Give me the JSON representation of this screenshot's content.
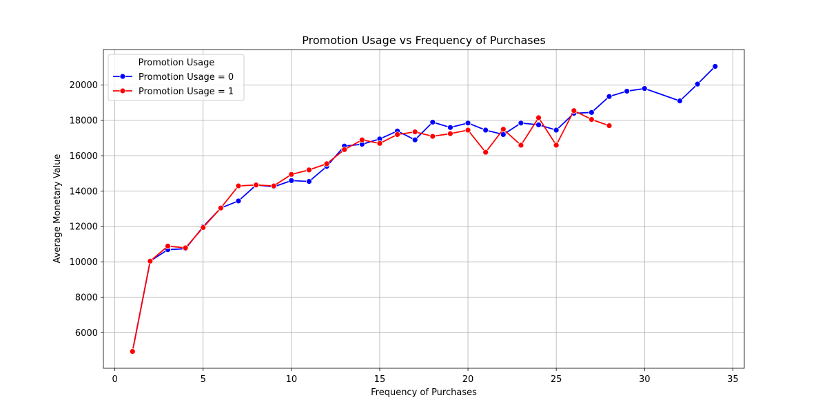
{
  "chart_data": {
    "type": "line",
    "title": "Promotion Usage vs Frequency of Purchases",
    "xlabel": "Frequency of Purchases",
    "ylabel": "Average Monetary Value",
    "xlim": [
      -0.65,
      35.65
    ],
    "ylim": [
      4000,
      22000
    ],
    "xticks": [
      0,
      5,
      10,
      15,
      20,
      25,
      30,
      35
    ],
    "yticks": [
      6000,
      8000,
      10000,
      12000,
      14000,
      16000,
      18000,
      20000
    ],
    "grid": true,
    "legend": {
      "title": "Promotion Usage",
      "placement": "top-left"
    },
    "series": [
      {
        "name": "Promotion Usage = 0",
        "color": "#0000ff",
        "x": [
          1,
          2,
          3,
          4,
          5,
          6,
          7,
          8,
          9,
          10,
          11,
          12,
          13,
          14,
          15,
          16,
          17,
          18,
          19,
          20,
          21,
          22,
          23,
          24,
          25,
          26,
          27,
          28,
          29,
          30,
          32,
          33,
          34
        ],
        "y": [
          4950,
          10050,
          10700,
          10750,
          12000,
          13050,
          13450,
          14350,
          14250,
          14600,
          14550,
          15400,
          16550,
          16650,
          16950,
          17400,
          16900,
          17900,
          17600,
          17850,
          17450,
          17200,
          17850,
          17750,
          17450,
          18400,
          18450,
          19350,
          19650,
          19800,
          19100,
          20050,
          21050
        ]
      },
      {
        "name": "Promotion Usage = 1",
        "color": "#ff0000",
        "x": [
          1,
          2,
          3,
          4,
          5,
          6,
          7,
          8,
          9,
          10,
          11,
          12,
          13,
          14,
          15,
          16,
          17,
          18,
          19,
          20,
          21,
          22,
          23,
          24,
          25,
          26,
          27,
          28
        ],
        "y": [
          4950,
          10050,
          10900,
          10800,
          11950,
          13050,
          14300,
          14350,
          14300,
          14950,
          15200,
          15550,
          16350,
          16900,
          16700,
          17200,
          17350,
          17100,
          17250,
          17450,
          16200,
          17500,
          16600,
          18150,
          16600,
          18550,
          18050,
          17700
        ]
      }
    ]
  }
}
